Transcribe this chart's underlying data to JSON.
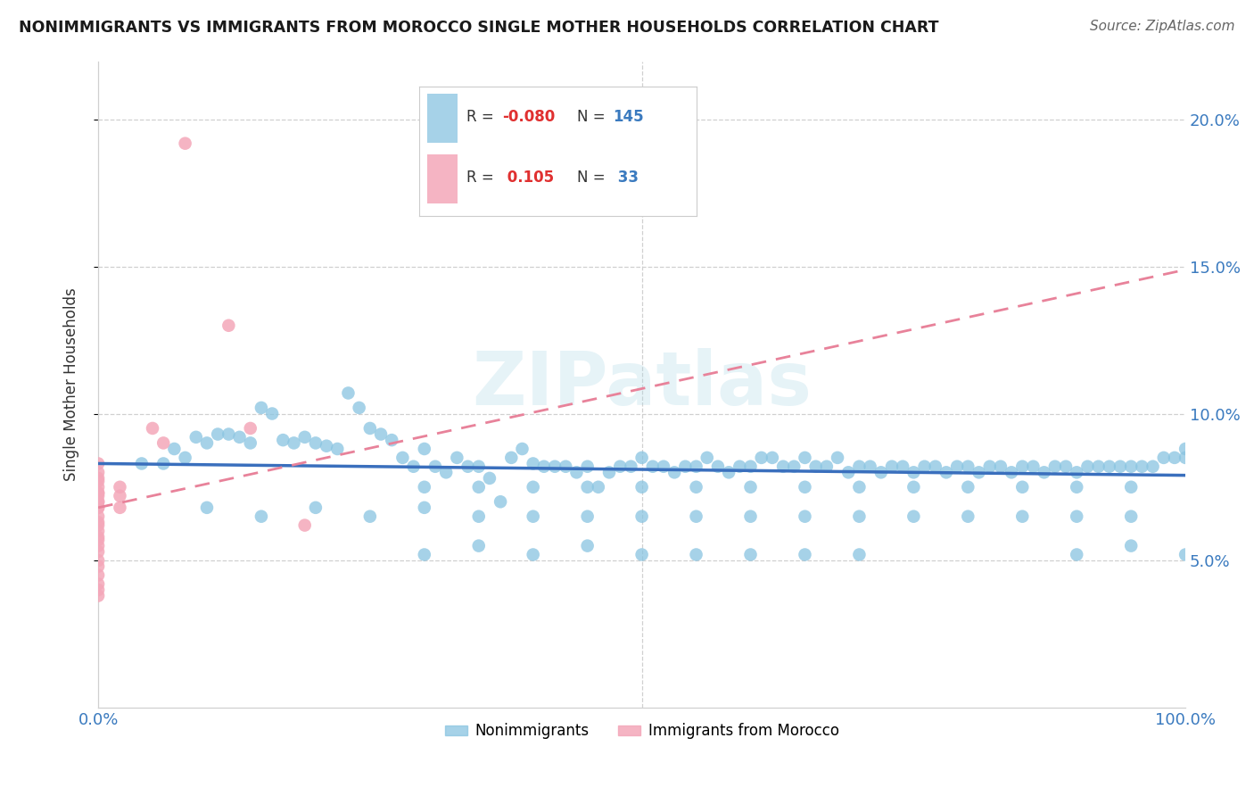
{
  "title": "NONIMMIGRANTS VS IMMIGRANTS FROM MOROCCO SINGLE MOTHER HOUSEHOLDS CORRELATION CHART",
  "source": "Source: ZipAtlas.com",
  "ylabel": "Single Mother Households",
  "xlim": [
    0,
    1.0
  ],
  "ylim": [
    0.0,
    0.22
  ],
  "yticks": [
    0.05,
    0.1,
    0.15,
    0.2
  ],
  "ytick_labels": [
    "5.0%",
    "10.0%",
    "15.0%",
    "20.0%"
  ],
  "xticks": [
    0.0,
    0.25,
    0.5,
    0.75,
    1.0
  ],
  "xtick_labels": [
    "0.0%",
    "",
    "",
    "",
    "100.0%"
  ],
  "r_nonimm": -0.08,
  "n_nonimm": 145,
  "r_imm": 0.105,
  "n_imm": 33,
  "blue_color": "#89c4e1",
  "pink_color": "#f4a7b9",
  "blue_line_color": "#3a6fbd",
  "pink_line_color": "#e8829a",
  "watermark": "ZIPatlas",
  "blue_line": [
    [
      0.0,
      0.083
    ],
    [
      1.0,
      0.079
    ]
  ],
  "pink_line": [
    [
      0.0,
      0.068
    ],
    [
      1.0,
      0.149
    ]
  ],
  "nonimm_scatter": [
    [
      0.04,
      0.083
    ],
    [
      0.06,
      0.083
    ],
    [
      0.07,
      0.088
    ],
    [
      0.08,
      0.085
    ],
    [
      0.09,
      0.092
    ],
    [
      0.1,
      0.09
    ],
    [
      0.11,
      0.093
    ],
    [
      0.12,
      0.093
    ],
    [
      0.13,
      0.092
    ],
    [
      0.14,
      0.09
    ],
    [
      0.15,
      0.102
    ],
    [
      0.16,
      0.1
    ],
    [
      0.17,
      0.091
    ],
    [
      0.18,
      0.09
    ],
    [
      0.19,
      0.092
    ],
    [
      0.2,
      0.09
    ],
    [
      0.21,
      0.089
    ],
    [
      0.22,
      0.088
    ],
    [
      0.23,
      0.107
    ],
    [
      0.24,
      0.102
    ],
    [
      0.25,
      0.095
    ],
    [
      0.26,
      0.093
    ],
    [
      0.27,
      0.091
    ],
    [
      0.28,
      0.085
    ],
    [
      0.29,
      0.082
    ],
    [
      0.3,
      0.088
    ],
    [
      0.31,
      0.082
    ],
    [
      0.32,
      0.08
    ],
    [
      0.33,
      0.085
    ],
    [
      0.34,
      0.082
    ],
    [
      0.35,
      0.082
    ],
    [
      0.36,
      0.078
    ],
    [
      0.37,
      0.07
    ],
    [
      0.38,
      0.085
    ],
    [
      0.39,
      0.088
    ],
    [
      0.4,
      0.083
    ],
    [
      0.41,
      0.082
    ],
    [
      0.42,
      0.082
    ],
    [
      0.43,
      0.082
    ],
    [
      0.44,
      0.08
    ],
    [
      0.45,
      0.082
    ],
    [
      0.46,
      0.075
    ],
    [
      0.47,
      0.08
    ],
    [
      0.48,
      0.082
    ],
    [
      0.49,
      0.082
    ],
    [
      0.5,
      0.085
    ],
    [
      0.51,
      0.082
    ],
    [
      0.52,
      0.082
    ],
    [
      0.53,
      0.08
    ],
    [
      0.54,
      0.082
    ],
    [
      0.55,
      0.082
    ],
    [
      0.56,
      0.085
    ],
    [
      0.57,
      0.082
    ],
    [
      0.58,
      0.08
    ],
    [
      0.59,
      0.082
    ],
    [
      0.6,
      0.082
    ],
    [
      0.61,
      0.085
    ],
    [
      0.62,
      0.085
    ],
    [
      0.63,
      0.082
    ],
    [
      0.64,
      0.082
    ],
    [
      0.65,
      0.085
    ],
    [
      0.66,
      0.082
    ],
    [
      0.67,
      0.082
    ],
    [
      0.68,
      0.085
    ],
    [
      0.69,
      0.08
    ],
    [
      0.7,
      0.082
    ],
    [
      0.71,
      0.082
    ],
    [
      0.72,
      0.08
    ],
    [
      0.73,
      0.082
    ],
    [
      0.74,
      0.082
    ],
    [
      0.75,
      0.08
    ],
    [
      0.76,
      0.082
    ],
    [
      0.77,
      0.082
    ],
    [
      0.78,
      0.08
    ],
    [
      0.79,
      0.082
    ],
    [
      0.8,
      0.082
    ],
    [
      0.81,
      0.08
    ],
    [
      0.82,
      0.082
    ],
    [
      0.83,
      0.082
    ],
    [
      0.84,
      0.08
    ],
    [
      0.85,
      0.082
    ],
    [
      0.86,
      0.082
    ],
    [
      0.87,
      0.08
    ],
    [
      0.88,
      0.082
    ],
    [
      0.89,
      0.082
    ],
    [
      0.9,
      0.08
    ],
    [
      0.91,
      0.082
    ],
    [
      0.92,
      0.082
    ],
    [
      0.93,
      0.082
    ],
    [
      0.94,
      0.082
    ],
    [
      0.95,
      0.082
    ],
    [
      0.96,
      0.082
    ],
    [
      0.97,
      0.082
    ],
    [
      0.98,
      0.085
    ],
    [
      0.99,
      0.085
    ],
    [
      1.0,
      0.088
    ],
    [
      1.0,
      0.085
    ],
    [
      0.1,
      0.068
    ],
    [
      0.15,
      0.065
    ],
    [
      0.2,
      0.068
    ],
    [
      0.25,
      0.065
    ],
    [
      0.3,
      0.068
    ],
    [
      0.35,
      0.065
    ],
    [
      0.4,
      0.065
    ],
    [
      0.45,
      0.065
    ],
    [
      0.5,
      0.065
    ],
    [
      0.55,
      0.065
    ],
    [
      0.6,
      0.065
    ],
    [
      0.65,
      0.065
    ],
    [
      0.7,
      0.065
    ],
    [
      0.75,
      0.065
    ],
    [
      0.8,
      0.065
    ],
    [
      0.85,
      0.065
    ],
    [
      0.9,
      0.065
    ],
    [
      0.95,
      0.065
    ],
    [
      0.55,
      0.075
    ],
    [
      0.6,
      0.075
    ],
    [
      0.65,
      0.075
    ],
    [
      0.7,
      0.075
    ],
    [
      0.75,
      0.075
    ],
    [
      0.8,
      0.075
    ],
    [
      0.85,
      0.075
    ],
    [
      0.9,
      0.075
    ],
    [
      0.95,
      0.075
    ],
    [
      0.3,
      0.075
    ],
    [
      0.35,
      0.075
    ],
    [
      0.4,
      0.075
    ],
    [
      0.45,
      0.075
    ],
    [
      0.5,
      0.075
    ],
    [
      0.3,
      0.052
    ],
    [
      0.35,
      0.055
    ],
    [
      0.4,
      0.052
    ],
    [
      0.45,
      0.055
    ],
    [
      0.5,
      0.052
    ],
    [
      0.55,
      0.052
    ],
    [
      0.6,
      0.052
    ],
    [
      0.65,
      0.052
    ],
    [
      0.7,
      0.052
    ],
    [
      0.9,
      0.052
    ],
    [
      0.95,
      0.055
    ],
    [
      1.0,
      0.052
    ]
  ],
  "imm_scatter": [
    [
      0.0,
      0.083
    ],
    [
      0.0,
      0.08
    ],
    [
      0.0,
      0.078
    ],
    [
      0.0,
      0.077
    ],
    [
      0.0,
      0.075
    ],
    [
      0.0,
      0.073
    ],
    [
      0.0,
      0.073
    ],
    [
      0.0,
      0.072
    ],
    [
      0.0,
      0.07
    ],
    [
      0.0,
      0.07
    ],
    [
      0.0,
      0.068
    ],
    [
      0.0,
      0.068
    ],
    [
      0.0,
      0.065
    ],
    [
      0.0,
      0.063
    ],
    [
      0.0,
      0.062
    ],
    [
      0.0,
      0.06
    ],
    [
      0.0,
      0.058
    ],
    [
      0.0,
      0.057
    ],
    [
      0.0,
      0.055
    ],
    [
      0.0,
      0.053
    ],
    [
      0.0,
      0.05
    ],
    [
      0.0,
      0.048
    ],
    [
      0.0,
      0.045
    ],
    [
      0.0,
      0.042
    ],
    [
      0.0,
      0.04
    ],
    [
      0.0,
      0.038
    ],
    [
      0.02,
      0.068
    ],
    [
      0.02,
      0.072
    ],
    [
      0.02,
      0.075
    ],
    [
      0.05,
      0.095
    ],
    [
      0.06,
      0.09
    ],
    [
      0.08,
      0.192
    ],
    [
      0.12,
      0.13
    ],
    [
      0.14,
      0.095
    ],
    [
      0.19,
      0.062
    ]
  ]
}
